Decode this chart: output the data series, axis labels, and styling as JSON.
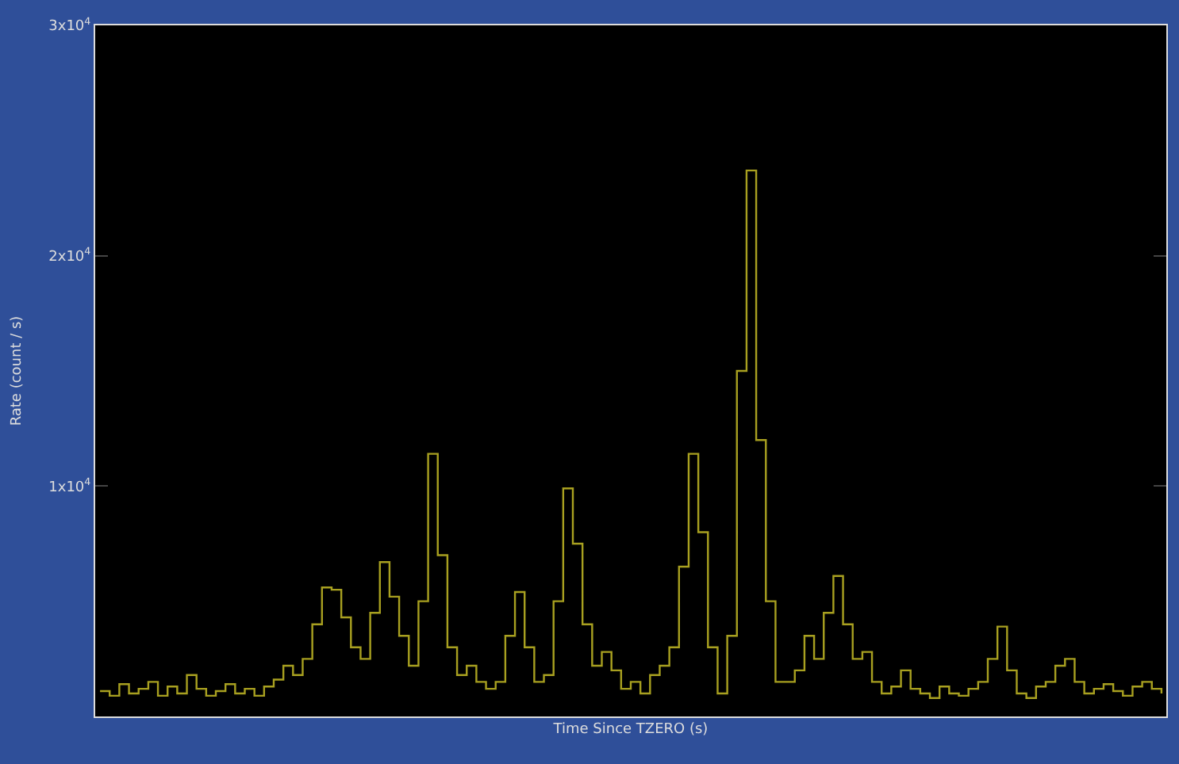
{
  "chart_data": {
    "type": "step",
    "xlabel": "Time Since TZERO (s)",
    "ylabel": "Rate (count / s)",
    "categories": [
      null,
      null,
      null,
      null,
      null,
      null,
      null,
      null,
      null,
      null,
      null,
      null,
      null,
      null,
      null,
      null,
      null,
      null,
      null,
      null,
      null,
      null,
      null,
      null,
      null,
      null,
      null,
      null,
      null,
      null,
      null,
      null,
      null,
      null,
      null,
      null,
      null,
      null,
      null,
      null,
      null,
      null,
      null,
      null,
      null,
      null,
      null,
      null,
      null,
      null,
      null,
      null,
      null,
      null,
      null,
      null,
      null,
      null,
      null,
      null,
      null,
      null,
      null,
      null,
      null,
      null,
      null,
      null,
      null,
      null,
      null,
      null,
      null,
      null,
      null,
      null,
      null,
      null,
      null,
      null,
      null,
      null,
      null,
      null,
      null,
      null,
      null,
      null,
      null,
      null,
      null,
      null,
      null,
      null,
      null,
      null,
      null,
      null,
      null,
      null,
      null,
      null,
      null,
      null,
      null,
      null,
      null,
      null,
      null,
      null,
      null
    ],
    "series": [
      {
        "color": "#a8a020",
        "values": [
          1100,
          900,
          1400,
          1000,
          1200,
          1500,
          900,
          1300,
          1000,
          1800,
          1200,
          900,
          1100,
          1400,
          1000,
          1200,
          900,
          1300,
          1600,
          2200,
          1800,
          2500,
          4000,
          5600,
          5500,
          4300,
          3000,
          2500,
          4500,
          6700,
          5200,
          3500,
          2200,
          5000,
          11400,
          7000,
          3000,
          1800,
          2200,
          1500,
          1200,
          1500,
          3500,
          5400,
          3000,
          1500,
          1800,
          5000,
          9900,
          7500,
          4000,
          2200,
          2800,
          2000,
          1200,
          1500,
          1000,
          1800,
          2200,
          3000,
          6500,
          11400,
          8000,
          3000,
          1000,
          3500,
          15000,
          23700,
          12000,
          5000,
          1500,
          1500,
          2000,
          3500,
          2500,
          4500,
          6100,
          4000,
          2500,
          2800,
          1500,
          1000,
          1300,
          2000,
          1200,
          1000,
          800,
          1300,
          1000,
          900,
          1200,
          1500,
          2500,
          3900,
          2000,
          1000,
          800,
          1300,
          1500,
          2200,
          2500,
          1500,
          1000,
          1200,
          1400,
          1100,
          900,
          1300,
          1500,
          1200,
          1000
        ]
      }
    ],
    "ylim": [
      0,
      30000
    ],
    "yticks": [
      {
        "value": 10000,
        "label": "1x10$^{4}$"
      },
      {
        "value": 20000,
        "label": "2x10$^{4}$"
      },
      {
        "value": 30000,
        "label": "3x10$^{4}$"
      }
    ],
    "grid": false
  }
}
